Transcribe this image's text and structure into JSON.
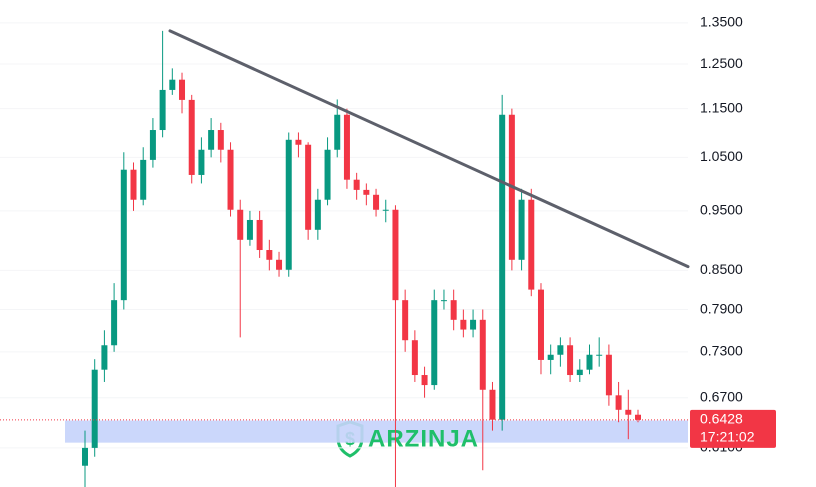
{
  "chart_data": {
    "type": "candlestick",
    "log_scale": true,
    "grid": true,
    "ylim": [
      0.567,
      1.409
    ],
    "yticks": [
      {
        "value": 1.35,
        "label": "1.3500"
      },
      {
        "value": 1.25,
        "label": "1.2500"
      },
      {
        "value": 1.15,
        "label": "1.1500"
      },
      {
        "value": 1.05,
        "label": "1.0500"
      },
      {
        "value": 0.95,
        "label": "0.9500"
      },
      {
        "value": 0.85,
        "label": "0.8500"
      },
      {
        "value": 0.79,
        "label": "0.7900"
      },
      {
        "value": 0.73,
        "label": "0.7300"
      },
      {
        "value": 0.67,
        "label": "0.6700"
      },
      {
        "value": 0.61,
        "label": "0.6100"
      }
    ],
    "up_color": "#089981",
    "down_color": "#f23645",
    "open": [
      0.59,
      0.61,
      0.706,
      0.739,
      0.804,
      1.026,
      0.97,
      1.045,
      1.105,
      1.191,
      1.214,
      1.169,
      1.016,
      1.065,
      1.105,
      1.065,
      0.952,
      0.9,
      0.934,
      0.883,
      0.867,
      0.851,
      1.085,
      1.075,
      0.917,
      0.97,
      1.065,
      1.137,
      1.007,
      0.988,
      0.979,
      0.952,
      0.952,
      0.804,
      0.746,
      0.699,
      0.686,
      0.804,
      0.804,
      0.775,
      0.761,
      0.775,
      0.68,
      0.643,
      1.137,
      0.867,
      0.97,
      0.82,
      0.719,
      0.726,
      0.739,
      0.699,
      0.706,
      0.726,
      0.726,
      0.673,
      0.655,
      0.649
    ],
    "high": [
      0.63,
      0.72,
      0.76,
      0.83,
      1.06,
      1.04,
      1.07,
      1.13,
      1.33,
      1.24,
      1.23,
      1.18,
      1.09,
      1.13,
      1.12,
      1.08,
      0.97,
      0.95,
      0.95,
      0.9,
      0.88,
      1.1,
      1.1,
      1.08,
      0.99,
      1.09,
      1.17,
      1.15,
      1.02,
      1.0,
      0.99,
      0.97,
      0.96,
      0.82,
      0.76,
      0.71,
      0.82,
      0.82,
      0.82,
      0.79,
      0.79,
      0.79,
      0.69,
      1.18,
      1.15,
      0.99,
      0.99,
      0.83,
      0.74,
      0.75,
      0.75,
      0.72,
      0.74,
      0.75,
      0.74,
      0.69,
      0.68,
      0.655
    ],
    "low": [
      0.567,
      0.6,
      0.69,
      0.73,
      0.79,
      0.95,
      0.96,
      1.03,
      1.09,
      1.18,
      1.14,
      1.0,
      1.0,
      1.05,
      1.04,
      0.94,
      0.75,
      0.89,
      0.87,
      0.85,
      0.84,
      0.84,
      1.05,
      0.9,
      0.9,
      0.96,
      1.05,
      0.99,
      0.97,
      0.96,
      0.94,
      0.93,
      0.567,
      0.73,
      0.69,
      0.67,
      0.68,
      0.79,
      0.76,
      0.75,
      0.75,
      0.585,
      0.63,
      0.63,
      0.85,
      0.85,
      0.81,
      0.7,
      0.7,
      0.71,
      0.69,
      0.69,
      0.7,
      0.71,
      0.66,
      0.64,
      0.62,
      0.64
    ],
    "close": [
      0.61,
      0.706,
      0.739,
      0.804,
      1.026,
      0.97,
      1.045,
      1.105,
      1.191,
      1.214,
      1.169,
      1.016,
      1.065,
      1.105,
      1.065,
      0.952,
      0.9,
      0.934,
      0.883,
      0.867,
      0.851,
      1.085,
      1.075,
      0.917,
      0.97,
      1.065,
      1.137,
      1.007,
      0.988,
      0.979,
      0.952,
      0.952,
      0.804,
      0.746,
      0.699,
      0.686,
      0.804,
      0.804,
      0.775,
      0.761,
      0.775,
      0.68,
      0.643,
      1.137,
      0.867,
      0.97,
      0.82,
      0.719,
      0.726,
      0.739,
      0.699,
      0.706,
      0.726,
      0.726,
      0.673,
      0.655,
      0.649,
      0.6428
    ],
    "trendline": {
      "values": [
        1.33,
        0.856
      ],
      "color": "#5d606b"
    },
    "zone": {
      "range": [
        0.616,
        0.642
      ],
      "color": "#c5d3fb"
    },
    "last_price": 0.6428,
    "countdown": "17:21:02",
    "watermark": "ARZINJA"
  }
}
